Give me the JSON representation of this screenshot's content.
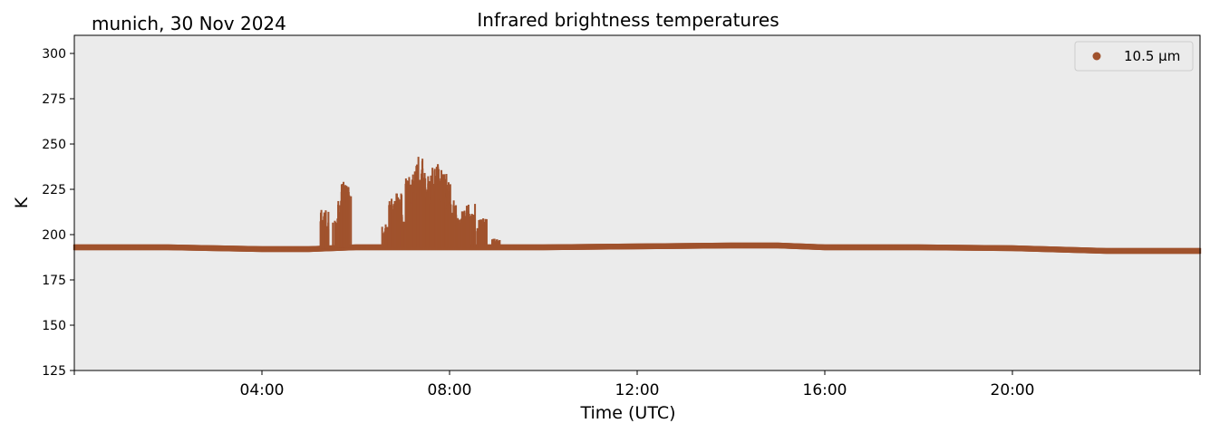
{
  "chart_data": {
    "type": "scatter",
    "location_date": "munich, 30 Nov 2024",
    "title": "Infrared brightness temperatures",
    "xlabel": "Time (UTC)",
    "ylabel": "K",
    "x_unit": "hours UTC",
    "xlim": [
      "00:00",
      "24:00"
    ],
    "x_ticks": [
      "04:00",
      "08:00",
      "12:00",
      "16:00",
      "20:00"
    ],
    "ylim": [
      125,
      310
    ],
    "y_ticks": [
      125,
      150,
      175,
      200,
      225,
      250,
      275,
      300
    ],
    "grid": false,
    "background": "#ebebeb",
    "legend_position": "top-right",
    "series": [
      {
        "name": "10.5 µm",
        "color": "#a0522d",
        "baseline": {
          "x": [
            0,
            2,
            4,
            5,
            6,
            8,
            10,
            12,
            14,
            15,
            16,
            18,
            20,
            22,
            24
          ],
          "y": [
            193,
            193,
            192,
            192,
            193,
            193,
            193,
            193.5,
            194,
            194,
            193,
            193,
            192.5,
            191,
            191
          ]
        },
        "spikes": [
          {
            "x": 5.33,
            "y": 214
          },
          {
            "x": 5.37,
            "y": 206
          },
          {
            "x": 5.6,
            "y": 209
          },
          {
            "x": 5.72,
            "y": 220
          },
          {
            "x": 5.78,
            "y": 228
          },
          {
            "x": 5.82,
            "y": 230
          },
          {
            "x": 6.65,
            "y": 206
          },
          {
            "x": 6.8,
            "y": 220
          },
          {
            "x": 6.9,
            "y": 223
          },
          {
            "x": 7.02,
            "y": 212
          },
          {
            "x": 7.15,
            "y": 233
          },
          {
            "x": 7.3,
            "y": 238
          },
          {
            "x": 7.4,
            "y": 243
          },
          {
            "x": 7.55,
            "y": 236
          },
          {
            "x": 7.7,
            "y": 240
          },
          {
            "x": 7.85,
            "y": 237
          },
          {
            "x": 7.95,
            "y": 229
          },
          {
            "x": 8.05,
            "y": 219
          },
          {
            "x": 8.2,
            "y": 210
          },
          {
            "x": 8.35,
            "y": 214
          },
          {
            "x": 8.45,
            "y": 217
          },
          {
            "x": 8.6,
            "y": 206
          },
          {
            "x": 8.7,
            "y": 209
          },
          {
            "x": 9.0,
            "y": 198
          }
        ]
      }
    ]
  }
}
